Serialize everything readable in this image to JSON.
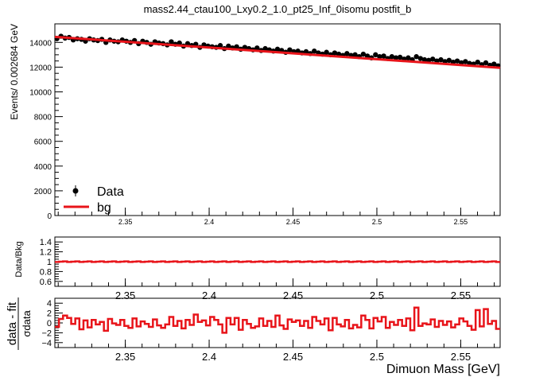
{
  "title": "mass2.44_ctau100_Lxy0.2_1.0_pt25_Inf_0isomu   postfit_b",
  "colors": {
    "data": "#000000",
    "fit": "#e8141a",
    "axis": "#000000"
  },
  "chart_data": [
    {
      "type": "scatter",
      "name": "main",
      "ylabel": "Events/ 0.002684 GeV",
      "xlim": [
        2.308,
        2.5735
      ],
      "ylim": [
        0,
        15500
      ],
      "yticks": [
        0,
        2000,
        4000,
        6000,
        8000,
        10000,
        12000,
        14000
      ],
      "xticks": [
        2.35,
        2.4,
        2.45,
        2.5,
        2.55
      ],
      "xtick_labels": [
        "2.35",
        "2.4",
        "2.45",
        "2.5",
        "2.55"
      ],
      "fit_line": {
        "x": [
          2.308,
          2.5735
        ],
        "y": [
          14450,
          11950
        ]
      },
      "legend": {
        "position": "bottom-left",
        "entries": [
          "Data",
          "bg"
        ]
      },
      "bin_width": 0.002684,
      "data_y": [
        14300,
        14500,
        14350,
        14400,
        14200,
        14300,
        14250,
        14100,
        14300,
        14200,
        14150,
        14250,
        14000,
        14200,
        14100,
        14050,
        14200,
        14100,
        14000,
        14150,
        13900,
        14100,
        14000,
        13850,
        14050,
        13950,
        13900,
        13800,
        14050,
        13850,
        13950,
        13700,
        13900,
        13750,
        13850,
        13600,
        13800,
        13700,
        13650,
        13600,
        13750,
        13500,
        13700,
        13550,
        13650,
        13450,
        13600,
        13500,
        13400,
        13550,
        13350,
        13500,
        13400,
        13300,
        13450,
        13350,
        13200,
        13400,
        13250,
        13300,
        13150,
        13250,
        13100,
        13300,
        13150,
        13050,
        13200,
        13000,
        13150,
        13050,
        12950,
        13100,
        12950,
        13000,
        12850,
        13050,
        12900,
        12750,
        13000,
        12850,
        12900,
        12700,
        12850,
        12750,
        12800,
        12650,
        12750,
        12600,
        12850,
        12700,
        12600,
        12550,
        12650,
        12500,
        12600,
        12450,
        12550,
        12400,
        12500,
        12350,
        12450,
        12300,
        12250,
        12400,
        12200,
        12350,
        12150,
        12250,
        12100
      ]
    },
    {
      "type": "line",
      "name": "ratio",
      "ylabel": "Data/Bkg",
      "ylim": [
        0.5,
        1.5
      ],
      "yticks": [
        0.6,
        0.8,
        1,
        1.2,
        1.4
      ],
      "ytick_labels": [
        "0.6",
        "0.8",
        "1",
        "1.2",
        "1.4"
      ],
      "xtick_labels": [
        "2.35",
        "2.4",
        "2.45",
        "2.5",
        "2.55"
      ],
      "value": 1.0
    },
    {
      "type": "line",
      "name": "pull",
      "ylabel_top": "data - fit",
      "ylabel_bottom": "σdata",
      "ylim": [
        -5,
        5
      ],
      "yticks": [
        -4,
        -2,
        0,
        2,
        4
      ],
      "ytick_labels": [
        "−4",
        "−2",
        "0",
        "2",
        "4"
      ],
      "xtick_labels": [
        "2.35",
        "2.4",
        "2.45",
        "2.5",
        "2.55"
      ],
      "xlabel": "Dimuon Mass [GeV]",
      "values": [
        -0.8,
        0.8,
        1.5,
        1.0,
        -0.2,
        0.9,
        -1.3,
        0.5,
        -0.9,
        0.6,
        -0.3,
        0.2,
        -1.6,
        0.8,
        -0.1,
        -0.4,
        0.6,
        -0.6,
        -1.0,
        0.9,
        -0.7,
        0.3,
        -0.2,
        -0.8,
        0.7,
        -0.5,
        -1.0,
        -0.3,
        1.2,
        -0.6,
        0.4,
        -1.1,
        0.6,
        -0.4,
        1.7,
        0.2,
        0.5,
        -0.5,
        1.2,
        0.6,
        -0.3,
        -2.0,
        1.0,
        -0.3,
        1.0,
        -1.4,
        0.6,
        -0.2,
        -1.0,
        -0.7,
        0.9,
        -0.6,
        0.4,
        -0.8,
        1.5,
        -0.5,
        -1.2,
        0.7,
        0.2,
        0.5,
        -0.6,
        0.4,
        -1.0,
        1.2,
        0.4,
        -0.3,
        0.9,
        -1.5,
        1.0,
        -0.3,
        -0.7,
        0.6,
        -1.1,
        -0.4,
        -0.9,
        1.5,
        0.6,
        -1.1,
        1.0,
        0.3,
        1.2,
        -1.0,
        0.2,
        -0.4,
        0.6,
        -0.6,
        0.9,
        -1.5,
        3.1,
        -0.6,
        -0.1,
        -0.3,
        0.7,
        -0.8,
        0.4,
        -0.4,
        0.3,
        -0.9,
        -0.3,
        0.9,
        0.3,
        -0.6,
        -1.4,
        2.6,
        -0.7,
        2.8,
        -0.2,
        0.4,
        -1.2
      ]
    }
  ]
}
